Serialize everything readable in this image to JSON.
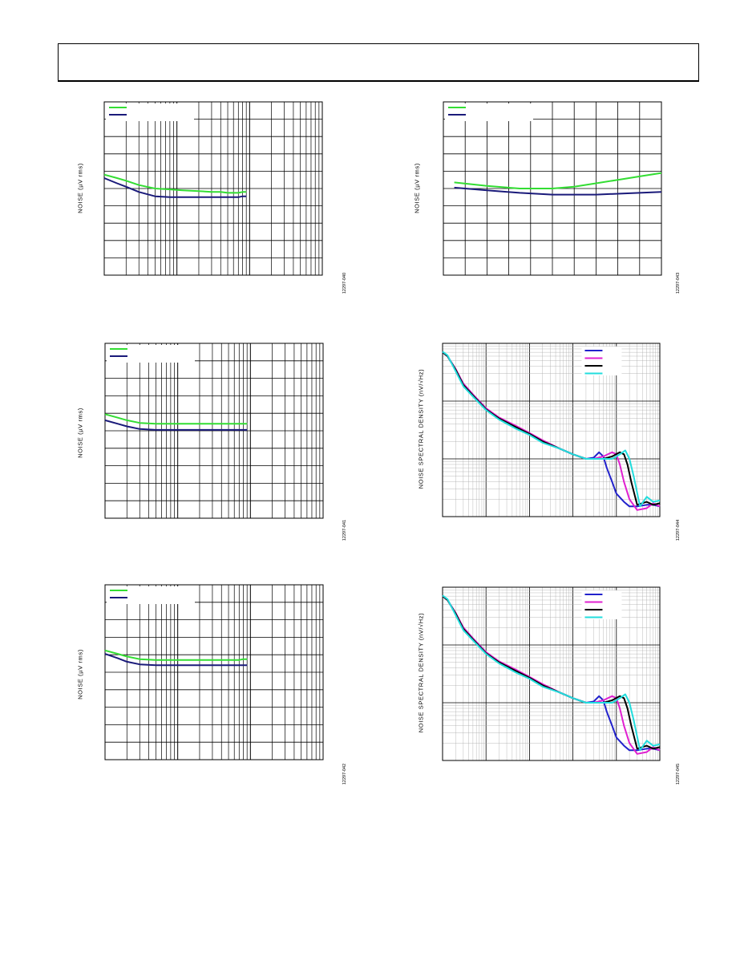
{
  "colors": {
    "green": "#33dd33",
    "navy": "#1a1a7a",
    "blue": "#2222cc",
    "magenta": "#e020d0",
    "black": "#000000",
    "cyan": "#22dddd"
  },
  "chart_data": [
    {
      "type": "line",
      "ylabel": "NOISE (µV rms)",
      "figure_id": "12297-040",
      "x_scale": "log",
      "x_decades": 3,
      "y_divisions": 10,
      "legend_placement": "top-left",
      "series": [
        {
          "color": "#33dd33",
          "x": [
            1,
            1.5,
            2,
            3,
            5,
            8,
            12,
            20,
            30,
            40,
            50,
            60,
            70,
            80,
            90
          ],
          "y": [
            5.8,
            5.6,
            5.45,
            5.2,
            5.0,
            4.95,
            4.9,
            4.85,
            4.8,
            4.8,
            4.75,
            4.75,
            4.75,
            4.8,
            4.8
          ]
        },
        {
          "color": "#1a1a7a",
          "x": [
            1,
            1.5,
            2,
            3,
            5,
            8,
            12,
            20,
            30,
            40,
            50,
            60,
            70,
            80,
            90
          ],
          "y": [
            5.6,
            5.3,
            5.1,
            4.8,
            4.55,
            4.5,
            4.5,
            4.5,
            4.5,
            4.5,
            4.5,
            4.5,
            4.5,
            4.55,
            4.55
          ]
        }
      ]
    },
    {
      "type": "line",
      "ylabel": "NOISE (µV rms)",
      "figure_id": "12297-041",
      "x_scale": "log",
      "x_decades": 3,
      "y_divisions": 10,
      "legend_placement": "top-left",
      "series": [
        {
          "color": "#33dd33",
          "x": [
            1,
            1.5,
            2,
            3,
            5,
            8,
            12,
            20,
            30,
            40,
            50,
            60,
            70,
            80,
            90
          ],
          "y": [
            5.95,
            5.75,
            5.6,
            5.45,
            5.4,
            5.4,
            5.4,
            5.4,
            5.4,
            5.4,
            5.4,
            5.4,
            5.4,
            5.4,
            5.4
          ]
        },
        {
          "color": "#1a1a7a",
          "x": [
            1,
            1.5,
            2,
            3,
            5,
            8,
            12,
            20,
            30,
            40,
            50,
            60,
            70,
            80,
            90
          ],
          "y": [
            5.6,
            5.4,
            5.25,
            5.1,
            5.05,
            5.05,
            5.05,
            5.05,
            5.05,
            5.05,
            5.05,
            5.05,
            5.05,
            5.05,
            5.05
          ]
        }
      ]
    },
    {
      "type": "line",
      "ylabel": "NOISE (µV rms)",
      "figure_id": "12297-042",
      "x_scale": "log",
      "x_decades": 3,
      "y_divisions": 10,
      "legend_placement": "top-left",
      "series": [
        {
          "color": "#33dd33",
          "x": [
            1,
            1.5,
            2,
            3,
            5,
            8,
            12,
            20,
            30,
            40,
            50,
            60,
            70,
            80,
            90
          ],
          "y": [
            6.25,
            6.05,
            5.9,
            5.75,
            5.7,
            5.7,
            5.7,
            5.7,
            5.7,
            5.7,
            5.7,
            5.7,
            5.7,
            5.75,
            5.75
          ]
        },
        {
          "color": "#1a1a7a",
          "x": [
            1,
            1.5,
            2,
            3,
            5,
            8,
            12,
            20,
            30,
            40,
            50,
            60,
            70,
            80,
            90
          ],
          "y": [
            6.05,
            5.8,
            5.6,
            5.45,
            5.4,
            5.4,
            5.4,
            5.4,
            5.4,
            5.4,
            5.4,
            5.4,
            5.4,
            5.4,
            5.4
          ]
        }
      ]
    },
    {
      "type": "line",
      "ylabel": "NOISE (µV rms)",
      "figure_id": "12297-043",
      "x_scale": "linear",
      "x_range": [
        0,
        10
      ],
      "y_range": [
        0,
        10
      ],
      "legend_placement": "top-left",
      "series": [
        {
          "color": "#33dd33",
          "x": [
            0.5,
            2,
            3.5,
            5,
            6,
            7,
            8,
            9,
            10
          ],
          "y": [
            5.35,
            5.15,
            5.0,
            5.0,
            5.1,
            5.3,
            5.5,
            5.7,
            5.9
          ]
        },
        {
          "color": "#1a1a7a",
          "x": [
            0.5,
            2,
            3.5,
            5,
            6,
            7,
            8,
            9,
            10
          ],
          "y": [
            5.05,
            4.9,
            4.75,
            4.65,
            4.65,
            4.65,
            4.7,
            4.75,
            4.8
          ]
        }
      ]
    },
    {
      "type": "line",
      "ylabel": "NOISE SPECTRAL DENSITY (nV/√Hz)",
      "figure_id": "12297-044",
      "x_scale": "log",
      "y_scale": "log",
      "x_decades": 5,
      "y_decades": 3,
      "legend_placement": "top-right",
      "series": [
        {
          "color": "#2222cc",
          "x": [
            1,
            1.3,
            2,
            3,
            5,
            10,
            20,
            50,
            100,
            200,
            500,
            1000,
            2000,
            3000,
            4000,
            5000,
            6000,
            8000,
            10000,
            15000,
            20000,
            30000,
            50000,
            70000,
            100000
          ],
          "y": [
            700,
            600,
            350,
            200,
            130,
            75,
            50,
            35,
            27,
            20,
            15,
            12,
            10,
            10.5,
            13,
            11,
            7,
            4,
            2.5,
            1.8,
            1.5,
            1.5,
            1.6,
            1.6,
            1.5
          ]
        },
        {
          "color": "#e020d0",
          "x": [
            1,
            1.3,
            2,
            3,
            5,
            10,
            20,
            50,
            100,
            200,
            500,
            1000,
            2000,
            3000,
            5000,
            8000,
            10000,
            12000,
            15000,
            20000,
            30000,
            50000,
            70000,
            100000
          ],
          "y": [
            700,
            600,
            360,
            200,
            130,
            75,
            52,
            37,
            28,
            21,
            15,
            12,
            10,
            10,
            11,
            13,
            12,
            8,
            4,
            2,
            1.3,
            1.4,
            1.7,
            1.5
          ]
        },
        {
          "color": "#000000",
          "x": [
            1,
            1.3,
            2,
            3,
            5,
            10,
            20,
            50,
            100,
            200,
            500,
            1000,
            2000,
            3000,
            5000,
            8000,
            12000,
            15000,
            18000,
            22000,
            30000,
            50000,
            70000,
            100000
          ],
          "y": [
            700,
            600,
            350,
            190,
            125,
            72,
            50,
            35,
            27,
            20,
            15,
            12,
            10,
            10,
            10,
            11,
            13,
            12,
            8,
            4,
            1.6,
            1.8,
            1.6,
            1.7
          ]
        },
        {
          "color": "#22dddd",
          "x": [
            1,
            1.3,
            2,
            3,
            5,
            10,
            20,
            50,
            100,
            200,
            500,
            1000,
            2000,
            3000,
            5000,
            8000,
            12000,
            16000,
            20000,
            25000,
            35000,
            50000,
            70000,
            100000
          ],
          "y": [
            720,
            620,
            330,
            180,
            120,
            70,
            48,
            33,
            26,
            19,
            15,
            12,
            10,
            10,
            10,
            10,
            12,
            14,
            10,
            5,
            1.5,
            2.2,
            1.8,
            1.9
          ]
        }
      ]
    },
    {
      "type": "line",
      "ylabel": "NOISE SPECTRAL DENSITY (nV/√Hz)",
      "figure_id": "12297-045",
      "x_scale": "log",
      "y_scale": "log",
      "x_decades": 5,
      "y_decades": 3,
      "legend_placement": "top-right",
      "series": [
        {
          "color": "#2222cc",
          "x": [
            1,
            1.3,
            2,
            3,
            5,
            10,
            20,
            50,
            100,
            200,
            500,
            1000,
            2000,
            3000,
            4000,
            5000,
            6000,
            8000,
            10000,
            15000,
            20000,
            30000,
            50000,
            70000,
            100000
          ],
          "y": [
            700,
            600,
            350,
            200,
            130,
            75,
            50,
            35,
            27,
            20,
            15,
            12,
            10,
            10.5,
            13,
            11,
            7,
            4,
            2.5,
            1.8,
            1.5,
            1.5,
            1.6,
            1.6,
            1.5
          ]
        },
        {
          "color": "#e020d0",
          "x": [
            1,
            1.3,
            2,
            3,
            5,
            10,
            20,
            50,
            100,
            200,
            500,
            1000,
            2000,
            3000,
            5000,
            8000,
            10000,
            12000,
            15000,
            20000,
            30000,
            50000,
            70000,
            100000
          ],
          "y": [
            700,
            600,
            360,
            200,
            130,
            75,
            52,
            37,
            28,
            21,
            15,
            12,
            10,
            10,
            11,
            13,
            12,
            8,
            4,
            2,
            1.3,
            1.4,
            1.7,
            1.5
          ]
        },
        {
          "color": "#000000",
          "x": [
            1,
            1.3,
            2,
            3,
            5,
            10,
            20,
            50,
            100,
            200,
            500,
            1000,
            2000,
            3000,
            5000,
            8000,
            12000,
            15000,
            18000,
            22000,
            30000,
            50000,
            70000,
            100000
          ],
          "y": [
            700,
            600,
            350,
            190,
            125,
            72,
            50,
            35,
            27,
            20,
            15,
            12,
            10,
            10,
            10,
            11,
            13,
            12,
            8,
            4,
            1.6,
            1.8,
            1.6,
            1.7
          ]
        },
        {
          "color": "#22dddd",
          "x": [
            1,
            1.3,
            2,
            3,
            5,
            10,
            20,
            50,
            100,
            200,
            500,
            1000,
            2000,
            3000,
            5000,
            8000,
            12000,
            16000,
            20000,
            25000,
            35000,
            50000,
            70000,
            100000
          ],
          "y": [
            720,
            620,
            330,
            180,
            120,
            70,
            48,
            33,
            26,
            19,
            15,
            12,
            10,
            10,
            10,
            10,
            12,
            14,
            10,
            5,
            1.5,
            2.2,
            1.8,
            1.9
          ]
        }
      ]
    }
  ]
}
